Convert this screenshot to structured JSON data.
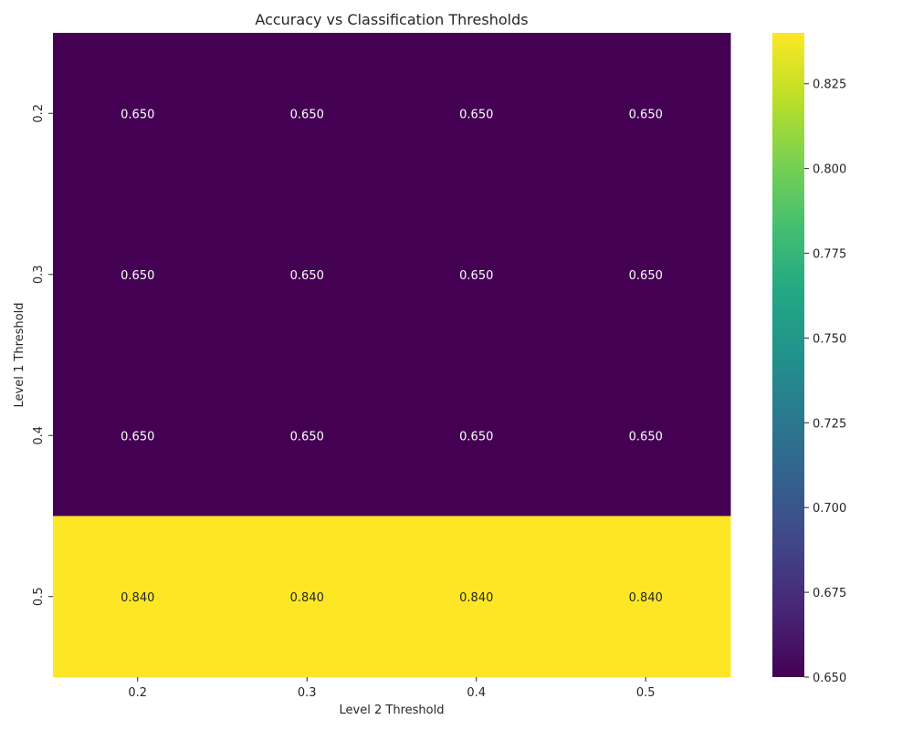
{
  "chart_data": {
    "type": "heatmap",
    "title": "Accuracy vs Classification Thresholds",
    "xlabel": "Level 2 Threshold",
    "ylabel": "Level 1 Threshold",
    "x_categories": [
      "0.2",
      "0.3",
      "0.4",
      "0.5"
    ],
    "y_categories": [
      "0.2",
      "0.3",
      "0.4",
      "0.5"
    ],
    "values": [
      [
        0.65,
        0.65,
        0.65,
        0.65
      ],
      [
        0.65,
        0.65,
        0.65,
        0.65
      ],
      [
        0.65,
        0.65,
        0.65,
        0.65
      ],
      [
        0.84,
        0.84,
        0.84,
        0.84
      ]
    ],
    "cell_labels": [
      [
        "0.650",
        "0.650",
        "0.650",
        "0.650"
      ],
      [
        "0.650",
        "0.650",
        "0.650",
        "0.650"
      ],
      [
        "0.650",
        "0.650",
        "0.650",
        "0.650"
      ],
      [
        "0.840",
        "0.840",
        "0.840",
        "0.840"
      ]
    ],
    "colormap": "viridis",
    "colorbar": {
      "range": [
        0.65,
        0.84
      ],
      "ticks": [
        0.65,
        0.675,
        0.7,
        0.725,
        0.75,
        0.775,
        0.8,
        0.825
      ],
      "tick_labels": [
        "0.650",
        "0.675",
        "0.700",
        "0.725",
        "0.750",
        "0.775",
        "0.800",
        "0.825"
      ]
    },
    "colors": {
      "low": "#440154",
      "high": "#fde725",
      "text_on_dark": "#ffffff",
      "text_on_light": "#262626"
    }
  }
}
